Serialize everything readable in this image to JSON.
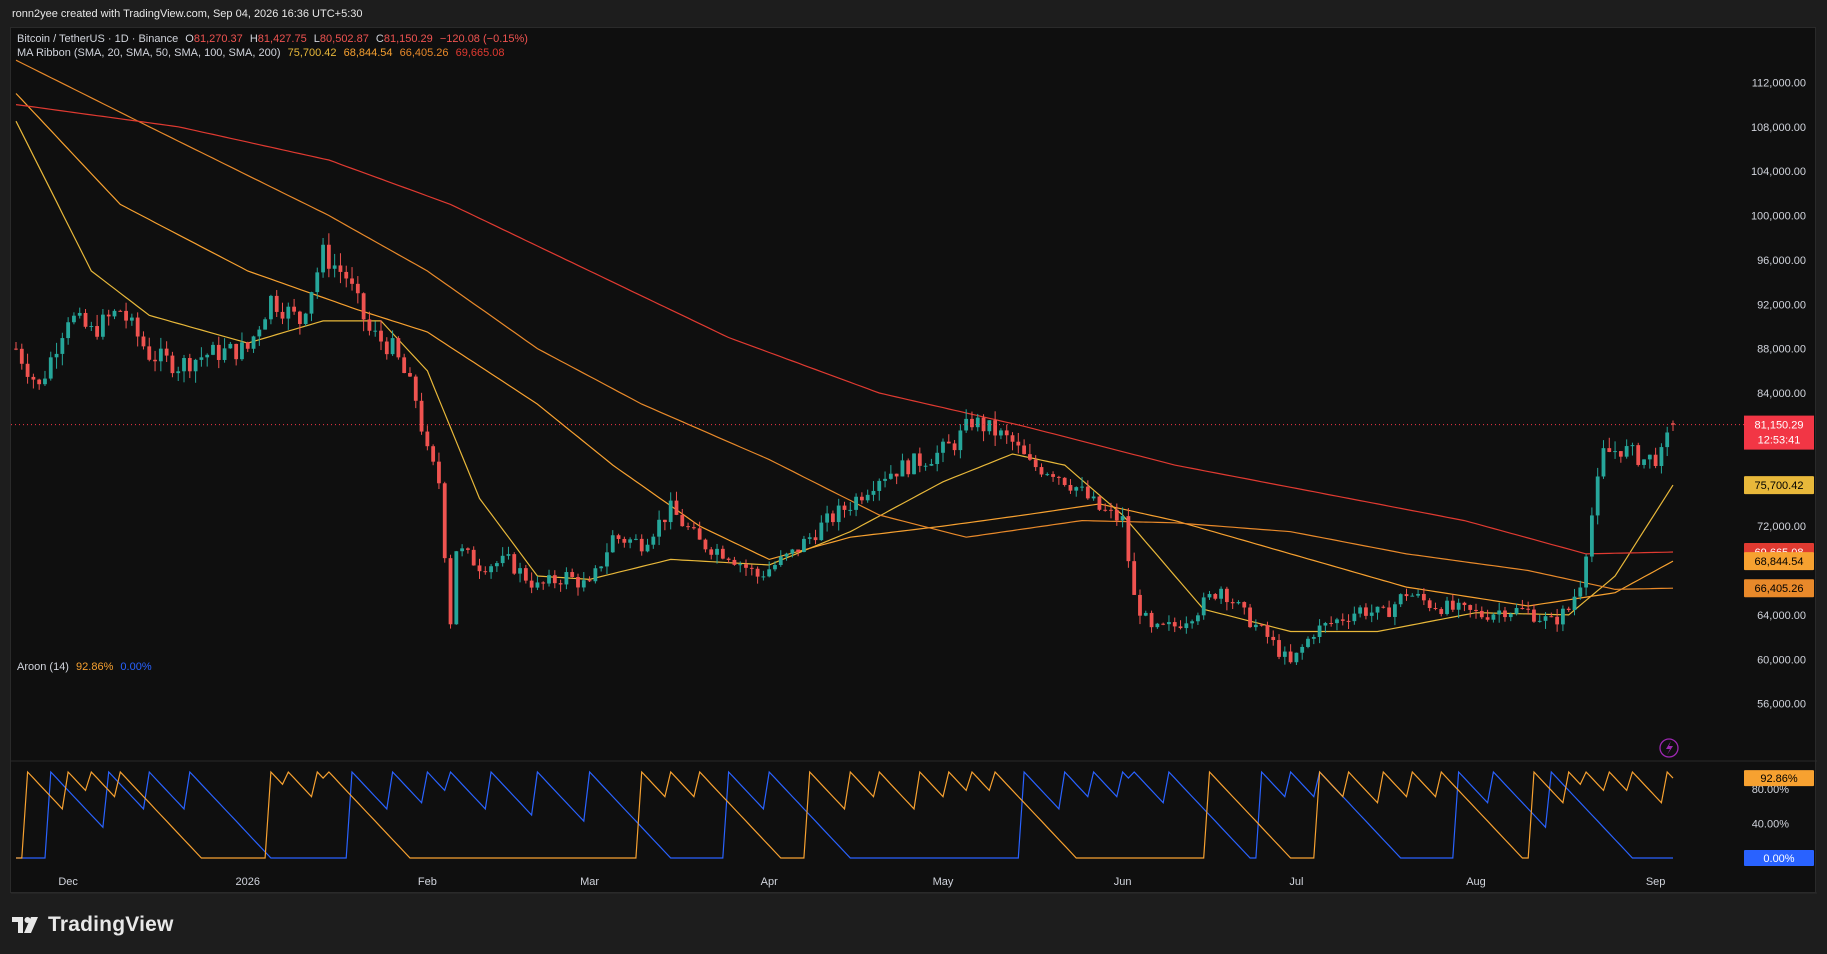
{
  "header": {
    "credit": "ronn2yee created with TradingView.com, Sep 04, 2026 16:36 UTC+5:30"
  },
  "legend": {
    "symbol": "Bitcoin / TetherUS · 1D · Binance",
    "ohlc": {
      "o_label": "O",
      "o": "81,270.37",
      "h_label": "H",
      "h": "81,427.75",
      "l_label": "L",
      "l": "80,502.87",
      "c_label": "C",
      "c": "81,150.29",
      "change": "−120.08 (−0.15%)"
    },
    "ma_ribbon": {
      "label": "MA Ribbon (SMA, 20, SMA, 50, SMA, 100, SMA, 200)",
      "v20": "75,700.42",
      "v50": "68,844.54",
      "v100": "66,405.26",
      "v200": "69,665.08"
    },
    "aroon": {
      "label": "Aroon (14)",
      "up": "92.86%",
      "down": "0.00%"
    }
  },
  "colors": {
    "up_candle": "#26a69a",
    "down_candle": "#ef5350",
    "sma20": "#e8b83a",
    "sma50": "#f7a130",
    "sma100": "#e8892a",
    "sma200": "#e03a31",
    "aroon_up": "#f7a130",
    "aroon_down": "#2962ff",
    "last_price": "#f23645"
  },
  "brand": "TradingView",
  "chart_data": {
    "type": "candlestick",
    "title": "Bitcoin / TetherUS · 1D · Binance",
    "price_axis": {
      "ylim": [
        52000,
        116000
      ],
      "ticks": [
        "112,000.00",
        "108,000.00",
        "104,000.00",
        "100,000.00",
        "96,000.00",
        "92,000.00",
        "88,000.00",
        "84,000.00",
        "72,000.00",
        "64,000.00",
        "60,000.00",
        "56,000.00"
      ],
      "tick_values": [
        112000,
        108000,
        104000,
        100000,
        96000,
        92000,
        88000,
        84000,
        72000,
        64000,
        60000,
        56000
      ]
    },
    "time_axis": {
      "start": "2025-11-22",
      "end": "2026-09-04",
      "labels": [
        {
          "label": "Dec",
          "date": "2025-12-01"
        },
        {
          "label": "2026",
          "date": "2026-01-01"
        },
        {
          "label": "Feb",
          "date": "2026-02-01"
        },
        {
          "label": "Mar",
          "date": "2026-03-01"
        },
        {
          "label": "Apr",
          "date": "2026-04-01"
        },
        {
          "label": "May",
          "date": "2026-05-01"
        },
        {
          "label": "Jun",
          "date": "2026-06-01"
        },
        {
          "label": "Jul",
          "date": "2026-07-01"
        },
        {
          "label": "Aug",
          "date": "2026-08-01"
        },
        {
          "label": "Sep",
          "date": "2026-09-01"
        }
      ]
    },
    "close_path": [
      [
        "2025-11-22",
        88000
      ],
      [
        "2025-11-26",
        84500
      ],
      [
        "2025-12-01",
        91000
      ],
      [
        "2025-12-05",
        89500
      ],
      [
        "2025-12-10",
        91500
      ],
      [
        "2025-12-15",
        87500
      ],
      [
        "2025-12-20",
        86500
      ],
      [
        "2025-12-25",
        87500
      ],
      [
        "2026-01-01",
        88000
      ],
      [
        "2026-01-05",
        92500
      ],
      [
        "2026-01-10",
        90500
      ],
      [
        "2026-01-14",
        96500
      ],
      [
        "2026-01-18",
        94500
      ],
      [
        "2026-01-22",
        89500
      ],
      [
        "2026-01-26",
        88000
      ],
      [
        "2026-01-30",
        83500
      ],
      [
        "2026-02-01",
        78500
      ],
      [
        "2026-02-03",
        76000
      ],
      [
        "2026-02-05",
        63500
      ],
      [
        "2026-02-06",
        70000
      ],
      [
        "2026-02-10",
        68500
      ],
      [
        "2026-02-15",
        68800
      ],
      [
        "2026-02-20",
        66500
      ],
      [
        "2026-02-25",
        67500
      ],
      [
        "2026-03-01",
        66500
      ],
      [
        "2026-03-05",
        71000
      ],
      [
        "2026-03-10",
        70500
      ],
      [
        "2026-03-15",
        73500
      ],
      [
        "2026-03-20",
        70500
      ],
      [
        "2026-03-25",
        69500
      ],
      [
        "2026-03-30",
        67500
      ],
      [
        "2026-04-05",
        69500
      ],
      [
        "2026-04-10",
        72000
      ],
      [
        "2026-04-15",
        74000
      ],
      [
        "2026-04-20",
        76500
      ],
      [
        "2026-04-25",
        77500
      ],
      [
        "2026-04-30",
        78500
      ],
      [
        "2026-05-03",
        79500
      ],
      [
        "2026-05-06",
        81500
      ],
      [
        "2026-05-10",
        80500
      ],
      [
        "2026-05-13",
        79500
      ],
      [
        "2026-05-16",
        77500
      ],
      [
        "2026-05-20",
        77000
      ],
      [
        "2026-05-24",
        75500
      ],
      [
        "2026-05-28",
        73500
      ],
      [
        "2026-06-01",
        72500
      ],
      [
        "2026-06-03",
        65500
      ],
      [
        "2026-06-06",
        62500
      ],
      [
        "2026-06-10",
        63000
      ],
      [
        "2026-06-14",
        64500
      ],
      [
        "2026-06-18",
        66500
      ],
      [
        "2026-06-22",
        64000
      ],
      [
        "2026-06-26",
        62000
      ],
      [
        "2026-06-30",
        59500
      ],
      [
        "2026-07-04",
        62500
      ],
      [
        "2026-07-08",
        63500
      ],
      [
        "2026-07-12",
        64500
      ],
      [
        "2026-07-16",
        64000
      ],
      [
        "2026-07-20",
        66000
      ],
      [
        "2026-07-24",
        65000
      ],
      [
        "2026-07-28",
        64500
      ],
      [
        "2026-08-02",
        64000
      ],
      [
        "2026-08-06",
        64500
      ],
      [
        "2026-08-10",
        64300
      ],
      [
        "2026-08-14",
        63300
      ],
      [
        "2026-08-17",
        64500
      ],
      [
        "2026-08-19",
        67000
      ],
      [
        "2026-08-21",
        73000
      ],
      [
        "2026-08-23",
        78500
      ],
      [
        "2026-08-26",
        79000
      ],
      [
        "2026-08-30",
        78000
      ],
      [
        "2026-09-02",
        78300
      ],
      [
        "2026-09-04",
        81150.29
      ]
    ],
    "series": [
      {
        "name": "SMA 20",
        "last": 75700.42,
        "points": [
          [
            "2025-11-22",
            108500
          ],
          [
            "2025-12-05",
            95000
          ],
          [
            "2025-12-15",
            91000
          ],
          [
            "2026-01-01",
            88500
          ],
          [
            "2026-01-14",
            90500
          ],
          [
            "2026-01-24",
            90500
          ],
          [
            "2026-02-01",
            86000
          ],
          [
            "2026-02-10",
            74500
          ],
          [
            "2026-02-20",
            67500
          ],
          [
            "2026-03-01",
            67200
          ],
          [
            "2026-03-15",
            69000
          ],
          [
            "2026-04-01",
            68500
          ],
          [
            "2026-04-15",
            71500
          ],
          [
            "2026-05-01",
            76000
          ],
          [
            "2026-05-13",
            78500
          ],
          [
            "2026-05-22",
            77500
          ],
          [
            "2026-06-01",
            73000
          ],
          [
            "2026-06-15",
            64500
          ],
          [
            "2026-06-30",
            62500
          ],
          [
            "2026-07-15",
            62500
          ],
          [
            "2026-08-01",
            64200
          ],
          [
            "2026-08-17",
            64000
          ],
          [
            "2026-08-25",
            67500
          ],
          [
            "2026-09-04",
            75700.42
          ]
        ]
      },
      {
        "name": "SMA 50",
        "last": 68844.54,
        "points": [
          [
            "2025-11-22",
            111000
          ],
          [
            "2025-12-10",
            101000
          ],
          [
            "2026-01-01",
            95000
          ],
          [
            "2026-01-20",
            91500
          ],
          [
            "2026-02-01",
            89500
          ],
          [
            "2026-02-20",
            83000
          ],
          [
            "2026-03-05",
            77500
          ],
          [
            "2026-03-20",
            72000
          ],
          [
            "2026-04-01",
            69000
          ],
          [
            "2026-04-15",
            71000
          ],
          [
            "2026-05-01",
            72000
          ],
          [
            "2026-05-15",
            73000
          ],
          [
            "2026-05-28",
            74000
          ],
          [
            "2026-06-10",
            72500
          ],
          [
            "2026-06-30",
            69500
          ],
          [
            "2026-07-20",
            66500
          ],
          [
            "2026-08-10",
            64800
          ],
          [
            "2026-08-25",
            66000
          ],
          [
            "2026-09-04",
            68844.54
          ]
        ]
      },
      {
        "name": "SMA 100",
        "last": 66405.26,
        "points": [
          [
            "2025-11-22",
            114000
          ],
          [
            "2025-12-15",
            108000
          ],
          [
            "2026-01-15",
            100000
          ],
          [
            "2026-02-01",
            95000
          ],
          [
            "2026-02-20",
            88000
          ],
          [
            "2026-03-10",
            83000
          ],
          [
            "2026-04-01",
            78000
          ],
          [
            "2026-04-20",
            73000
          ],
          [
            "2026-05-05",
            71000
          ],
          [
            "2026-05-25",
            72500
          ],
          [
            "2026-06-10",
            72300
          ],
          [
            "2026-06-30",
            71500
          ],
          [
            "2026-07-20",
            69500
          ],
          [
            "2026-08-10",
            68000
          ],
          [
            "2026-08-25",
            66300
          ],
          [
            "2026-09-04",
            66405.26
          ]
        ]
      },
      {
        "name": "SMA 200",
        "last": 69665.08,
        "points": [
          [
            "2025-11-22",
            110000
          ],
          [
            "2025-12-20",
            108000
          ],
          [
            "2026-01-15",
            105000
          ],
          [
            "2026-02-05",
            101000
          ],
          [
            "2026-03-01",
            95000
          ],
          [
            "2026-03-25",
            89000
          ],
          [
            "2026-04-20",
            84000
          ],
          [
            "2026-05-15",
            81000
          ],
          [
            "2026-06-10",
            77500
          ],
          [
            "2026-07-05",
            75000
          ],
          [
            "2026-07-30",
            72500
          ],
          [
            "2026-08-20",
            69500
          ],
          [
            "2026-09-04",
            69665.08
          ]
        ]
      }
    ],
    "aroon": {
      "ylim": [
        0,
        100
      ],
      "ticks": [
        "80.00%",
        "40.00%"
      ],
      "tick_values": [
        80,
        40
      ],
      "up_last": 92.86,
      "down_last": 0,
      "up_resets": [
        "2025-11-24",
        "2025-12-01",
        "2025-12-05",
        "2025-12-10",
        "2026-01-05",
        "2026-01-08",
        "2026-01-13",
        "2026-01-15",
        "2026-03-10",
        "2026-03-15",
        "2026-03-20",
        "2026-04-08",
        "2026-04-15",
        "2026-04-20",
        "2026-04-27",
        "2026-05-02",
        "2026-05-06",
        "2026-05-10",
        "2026-06-16",
        "2026-07-05",
        "2026-07-10",
        "2026-07-16",
        "2026-07-21",
        "2026-07-26",
        "2026-08-11",
        "2026-08-17",
        "2026-08-20",
        "2026-08-24",
        "2026-08-28",
        "2026-09-03"
      ],
      "down_resets": [
        "2025-11-28",
        "2025-12-08",
        "2025-12-15",
        "2025-12-22",
        "2026-01-19",
        "2026-01-26",
        "2026-02-01",
        "2026-02-05",
        "2026-02-12",
        "2026-02-20",
        "2026-03-01",
        "2026-03-25",
        "2026-04-01",
        "2026-05-15",
        "2026-05-22",
        "2026-05-27",
        "2026-06-01",
        "2026-06-03",
        "2026-06-09",
        "2026-06-25",
        "2026-06-30",
        "2026-07-05",
        "2026-07-29",
        "2026-08-04",
        "2026-08-14"
      ]
    },
    "last_close": 81150.29,
    "countdown": "12:53:41"
  }
}
